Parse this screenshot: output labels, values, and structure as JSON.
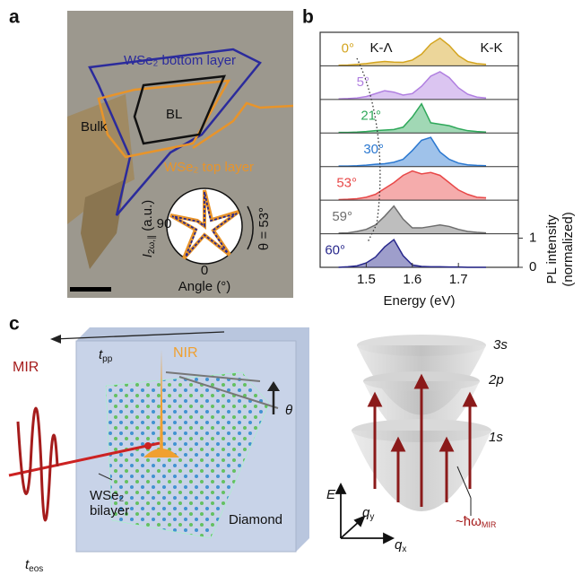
{
  "panel_labels": [
    "a",
    "b",
    "c"
  ],
  "panel_a": {
    "bottom_layer": "WSe₂ bottom layer",
    "top_layer": "WSe₂ top layer",
    "bl": "BL",
    "bulk": "Bulk",
    "polar": {
      "tick_90": "90",
      "tick_0": "0",
      "xlabel": "Angle (°)",
      "ylabel_base": "I",
      "ylabel_sub": "2ω,∥",
      "ylabel_unit": " (a.u.)",
      "angle": "θ = 53°"
    }
  },
  "chart_data": {
    "type": "area",
    "x": [
      1.44,
      1.46,
      1.48,
      1.5,
      1.52,
      1.54,
      1.56,
      1.58,
      1.6,
      1.62,
      1.64,
      1.66,
      1.68,
      1.7,
      1.72,
      1.74,
      1.76
    ],
    "series": [
      {
        "name": "0°",
        "color": "#d4a520",
        "values": [
          0.02,
          0.03,
          0.05,
          0.08,
          0.12,
          0.15,
          0.13,
          0.12,
          0.2,
          0.4,
          0.75,
          0.95,
          0.7,
          0.35,
          0.15,
          0.08,
          0.05
        ]
      },
      {
        "name": "5°",
        "color": "#b07fe0",
        "values": [
          0.02,
          0.03,
          0.05,
          0.1,
          0.2,
          0.3,
          0.25,
          0.15,
          0.2,
          0.45,
          0.8,
          0.95,
          0.75,
          0.4,
          0.18,
          0.08,
          0.05
        ]
      },
      {
        "name": "21°",
        "color": "#2fa85a",
        "values": [
          0.02,
          0.02,
          0.03,
          0.05,
          0.08,
          0.1,
          0.12,
          0.2,
          0.55,
          1.0,
          0.35,
          0.3,
          0.25,
          0.15,
          0.08,
          0.05,
          0.03
        ]
      },
      {
        "name": "30°",
        "color": "#2b78d0",
        "values": [
          0.02,
          0.02,
          0.03,
          0.05,
          0.08,
          0.1,
          0.15,
          0.25,
          0.55,
          0.9,
          1.0,
          0.5,
          0.25,
          0.12,
          0.06,
          0.04,
          0.03
        ]
      },
      {
        "name": "53°",
        "color": "#e84848",
        "values": [
          0.02,
          0.03,
          0.05,
          0.1,
          0.2,
          0.4,
          0.6,
          0.85,
          1.0,
          0.9,
          0.95,
          0.85,
          0.6,
          0.35,
          0.2,
          0.1,
          0.08
        ]
      },
      {
        "name": "59°",
        "color": "#6e6e6e",
        "values": [
          0.02,
          0.03,
          0.08,
          0.15,
          0.3,
          0.6,
          0.95,
          0.5,
          0.2,
          0.2,
          0.25,
          0.3,
          0.25,
          0.15,
          0.08,
          0.05,
          0.03
        ]
      },
      {
        "name": "60°",
        "color": "#28288c",
        "values": [
          0.0,
          0.02,
          0.05,
          0.15,
          0.35,
          0.7,
          0.95,
          0.4,
          0.08,
          0.03,
          0.02,
          0.02,
          0.01,
          0.01,
          0.0,
          0.0,
          0.0
        ]
      }
    ],
    "xlim": [
      1.4,
      1.83
    ],
    "xticks": [
      1.5,
      1.6,
      1.7
    ],
    "ylim": [
      0,
      1.15
    ],
    "yticks": [
      0,
      1
    ],
    "xlabel": "Energy (eV)",
    "ylabel_lines": [
      "PL intensity",
      "(normalized)"
    ],
    "annotations": [
      "K-Λ",
      "K-K"
    ]
  },
  "panel_c": {
    "mir": "MIR",
    "tpp_base": "t",
    "tpp_sub": "pp",
    "nir": "NIR",
    "theta": "θ",
    "sample_lines": [
      "WSe₂",
      "bilayer"
    ],
    "diamond": "Diamond",
    "teos_base": "t",
    "teos_sub": "eos",
    "state_3s": "3s",
    "state_2p": "2p",
    "state_1s": "1s",
    "e_axis": "E",
    "qy_base": "q",
    "qy_sub": "y",
    "qx_base": "q",
    "qx_sub": "x",
    "photon_base": "~ħω",
    "photon_sub": "MIR"
  }
}
